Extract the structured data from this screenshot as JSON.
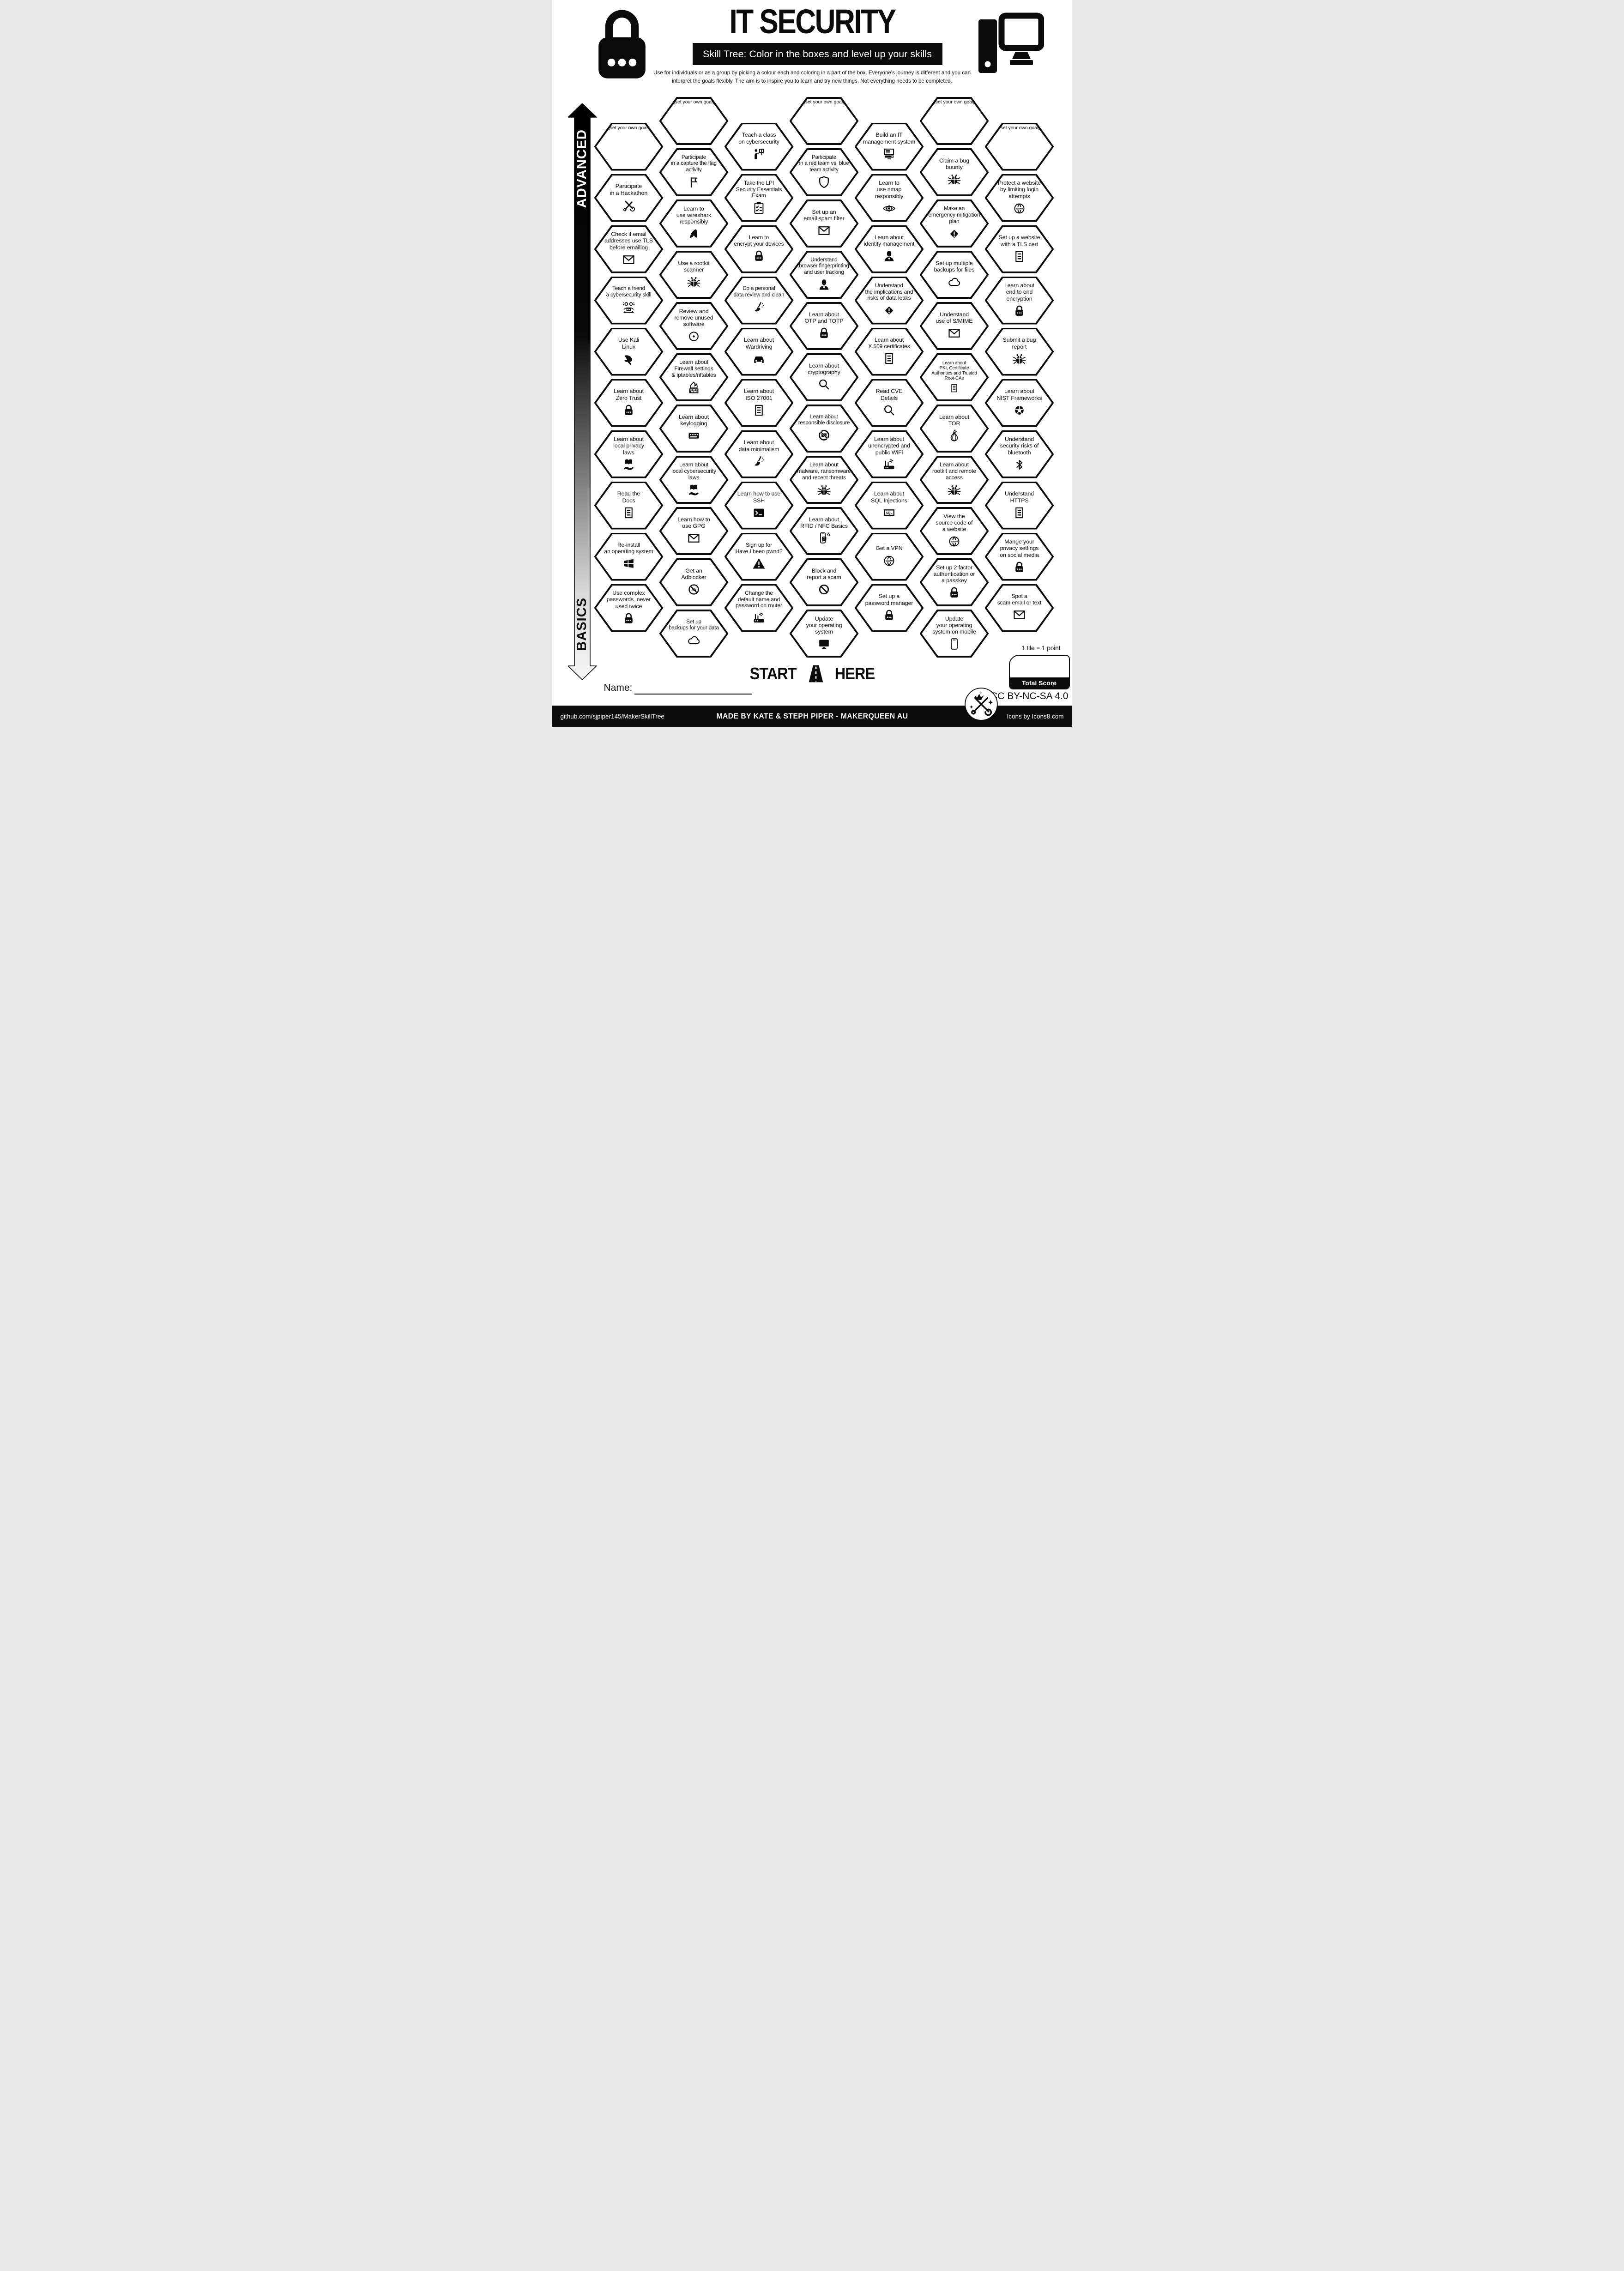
{
  "header": {
    "title": "IT SECURITY",
    "subtitle": "Skill Tree:  Color in the boxes and level up your skills",
    "description_line1": "Use for individuals or as a group by picking a colour each and coloring in a part of the box.  Everyone's journey is different and you can",
    "description_line2": "interpret the goals flexibly.  The aim is to inspire you to learn and try new things. Not everything needs to be completed.",
    "lock_icon": "padlock-icon",
    "computer_icon": "desktop-computer-icon"
  },
  "axis": {
    "top_label": "ADVANCED",
    "bottom_label": "BASICS"
  },
  "start_marker": {
    "left": "START",
    "right": "HERE",
    "icon": "road-icon"
  },
  "name_field": {
    "label": "Name:"
  },
  "scoring": {
    "note": "1 tile = 1 point",
    "box_label": "Total Score"
  },
  "footer": {
    "license": "CC BY-NC-SA 4.0",
    "repo": "github.com/sjpiper145/MakerSkillTree",
    "credit": "MADE BY KATE & STEPH PIPER  -  MAKERQUEEN AU",
    "icons_credit": "Icons by Icons8.com",
    "logo": "makerqueen-logo"
  },
  "colors": {
    "ink": "#0b0b0b",
    "paper": "#ffffff"
  },
  "grid": {
    "columns": [
      {
        "id": "col-1",
        "items": [
          {
            "label": "(set your own goal)",
            "goal": true
          },
          {
            "label": "Participate\nin a Hackathon",
            "icon": "tools-icon"
          },
          {
            "label": "Check if email\naddresses use TLS\nbefore emailing",
            "icon": "envelope-icon"
          },
          {
            "label": "Teach a friend\na cybersecurity skill",
            "icon": "people-desk-icon"
          },
          {
            "label": "Use Kali\nLinux",
            "icon": "kali-dragon-icon"
          },
          {
            "label": "Learn about\nZero Trust",
            "icon": "lock-icon"
          },
          {
            "label": "Learn about\nlocal privacy\nlaws",
            "icon": "book-hand-icon"
          },
          {
            "label": "Read the\nDocs",
            "icon": "document-icon"
          },
          {
            "label": "Re-install\nan operating system",
            "icon": "windows-icon"
          },
          {
            "label": "Use complex\npasswords, never\nused twice",
            "icon": "lock-icon"
          }
        ]
      },
      {
        "id": "col-2",
        "items": [
          {
            "label": "(set your own goal)",
            "goal": true
          },
          {
            "label": "Participate\nin a capture the flag\nactivity",
            "icon": "flag-icon"
          },
          {
            "label": "Learn to\nuse wireshark\nresponsibly",
            "icon": "shark-fin-icon"
          },
          {
            "label": "Use a rootkit\nscanner",
            "icon": "bug-icon"
          },
          {
            "label": "Review and\nremove unused\nsoftware",
            "icon": "disc-icon"
          },
          {
            "label": "Learn about\nFirewall settings\n& iptables/nftables",
            "icon": "firewall-icon"
          },
          {
            "label": "Learn about\nkeylogging",
            "icon": "keyboard-icon"
          },
          {
            "label": "Learn about\nlocal cybersecurity\nlaws",
            "icon": "book-hand-icon"
          },
          {
            "label": "Learn how to\nuse GPG",
            "icon": "envelope-icon"
          },
          {
            "label": "Get an\nAdblocker",
            "icon": "adblock-icon"
          },
          {
            "label": "Set up\nbackups for your data",
            "icon": "cloud-icon"
          }
        ]
      },
      {
        "id": "col-3",
        "items": [
          {
            "label": "Teach a class\non cybersecurity",
            "icon": "presenter-icon"
          },
          {
            "label": "Take the LPI\nSecurity Essentials\nExam",
            "icon": "clipboard-icon"
          },
          {
            "label": "Learn to\nencrypt your devices",
            "icon": "lock-icon"
          },
          {
            "label": "Do a personal\ndata review and clean",
            "icon": "broom-icon"
          },
          {
            "label": "Learn about\nWardriving",
            "icon": "car-icon"
          },
          {
            "label": "Learn about\nISO 27001",
            "icon": "document-icon"
          },
          {
            "label": "Learn about\ndata minimalism",
            "icon": "broom-icon"
          },
          {
            "label": "Learn how to use\nSSH",
            "icon": "terminal-icon"
          },
          {
            "label": "Sign up for\n'Have I been pwnd?'",
            "icon": "warning-triangle-icon"
          },
          {
            "label": "Change the\ndefault name and\npassword on router",
            "icon": "router-icon"
          }
        ]
      },
      {
        "id": "col-4",
        "items": [
          {
            "label": "(set your own goal)",
            "goal": true
          },
          {
            "label": "Participate\nin a red team vs. blue\nteam activity",
            "icon": "shield-icon"
          },
          {
            "label": "Set up an\nemail spam filter",
            "icon": "envelope-icon"
          },
          {
            "label": "Understand\nbrowser fingerprinting\nand user tracking",
            "icon": "person-icon"
          },
          {
            "label": "Learn about\nOTP and TOTP",
            "icon": "lock-icon"
          },
          {
            "label": "Learn about\ncryptography",
            "icon": "magnifier-icon"
          },
          {
            "label": "Learn about\nresponsible disclosure",
            "icon": "no-camera-icon"
          },
          {
            "label": "Learn about\nmalware, ransomware\nand recent threats",
            "icon": "bug-icon"
          },
          {
            "label": "Learn about\nRFID / NFC Basics",
            "icon": "phone-nfc-icon"
          },
          {
            "label": "Block and\nreport a scam",
            "icon": "block-icon"
          },
          {
            "label": "Update\nyour operating\nsystem",
            "icon": "monitor-icon"
          }
        ]
      },
      {
        "id": "col-5",
        "items": [
          {
            "label": "Build an IT\nmanagement system",
            "icon": "it-system-icon"
          },
          {
            "label": "Learn to\nuse nmap\nresponsibly",
            "icon": "eye-target-icon"
          },
          {
            "label": "Learn about\nidentity management",
            "icon": "person-icon"
          },
          {
            "label": "Understand\nthe implications and\nrisks of data leaks",
            "icon": "warning-diamond-icon"
          },
          {
            "label": "Learn about\nX.509 certificates",
            "icon": "document-icon"
          },
          {
            "label": "Read CVE\nDetails",
            "icon": "magnifier-icon"
          },
          {
            "label": "Learn about\nunencrypted and\npublic WiFi",
            "icon": "router-icon"
          },
          {
            "label": "Learn about\nSQL Injections",
            "icon": "sql-icon"
          },
          {
            "label": "Get a VPN",
            "icon": "www-globe-icon"
          },
          {
            "label": "Set up a\npassword manager",
            "icon": "lock-icon"
          }
        ]
      },
      {
        "id": "col-6",
        "items": [
          {
            "label": "(set your own goal)",
            "goal": true
          },
          {
            "label": "Claim a bug\nbounty",
            "icon": "bug-icon"
          },
          {
            "label": "Make an\nemergency mitigation\nplan",
            "icon": "warning-diamond-icon"
          },
          {
            "label": "Set up multiple\nbackups for files",
            "icon": "cloud-icon"
          },
          {
            "label": "Understand\nuse of S/MIME",
            "icon": "envelope-icon"
          },
          {
            "label": "Learn about\nPKI, Certificate\nAuthorities and Trusted\nRoot-CAs",
            "icon": "document-icon",
            "small": true
          },
          {
            "label": "Learn about\nTOR",
            "icon": "onion-icon"
          },
          {
            "label": "Learn about\nrootkit and remote\naccess",
            "icon": "bug-icon"
          },
          {
            "label": "View the\nsource code of\na website",
            "icon": "www-globe-icon"
          },
          {
            "label": "Set up 2 factor\nauthentication or\na passkey",
            "icon": "lock-icon"
          },
          {
            "label": "Update\nyour operating\nsystem on mobile",
            "icon": "phone-icon"
          }
        ]
      },
      {
        "id": "col-7",
        "items": [
          {
            "label": "(set your own goal)",
            "goal": true
          },
          {
            "label": "Protect a website\nby limiting login\nattempts",
            "icon": "www-globe-icon"
          },
          {
            "label": "Set up a website\nwith a TLS cert",
            "icon": "document-icon"
          },
          {
            "label": "Learn about\nend to end\nencryption",
            "icon": "lock-icon"
          },
          {
            "label": "Submit a bug\nreport",
            "icon": "bug-icon"
          },
          {
            "label": "Learn about\nNIST Frameworks",
            "icon": "nist-donut-icon"
          },
          {
            "label": "Understand\nsecurity risks of\nbluetooth",
            "icon": "bluetooth-icon"
          },
          {
            "label": "Understand\nHTTPS",
            "icon": "document-icon"
          },
          {
            "label": "Mange your\nprivacy settings\non social media",
            "icon": "lock-icon"
          },
          {
            "label": "Spot a\nscam email or text",
            "icon": "envelope-icon"
          }
        ]
      }
    ]
  }
}
